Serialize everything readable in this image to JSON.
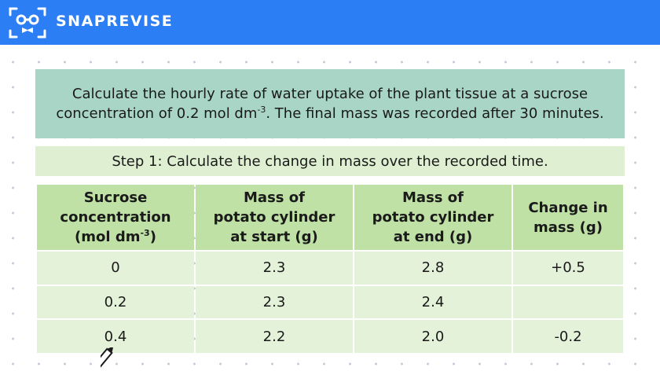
{
  "brand": {
    "name": "SNAPREVISE",
    "logo_icon": "robot-face-icon",
    "color": "#2c7ef4"
  },
  "question": {
    "text_before": "Calculate the hourly rate of water uptake of the plant tissue at a sucrose concentration of 0.2 mol dm",
    "superscript": "-3",
    "text_after": ". The final mass was recorded after 30 minutes."
  },
  "step": {
    "text": "Step 1: Calculate the change in mass over the recorded time."
  },
  "table": {
    "headers": [
      {
        "line1": "Sucrose",
        "line2": "concentration",
        "line3": "(mol dm",
        "sup": "-3",
        "tail": ")"
      },
      {
        "line1": "Mass of",
        "line2": "potato cylinder",
        "line3": "at start (g)"
      },
      {
        "line1": "Mass of",
        "line2": "potato cylinder",
        "line3": "at end (g)"
      },
      {
        "line1": "Change in",
        "line2": "mass (g)"
      }
    ],
    "rows": [
      [
        "0",
        "2.3",
        "2.8",
        "+0.5"
      ],
      [
        "0.2",
        "2.3",
        "2.4",
        ""
      ],
      [
        "0.4",
        "2.2",
        "2.0",
        "-0.2"
      ]
    ]
  },
  "cursor": {
    "icon": "pencil-cursor-icon"
  }
}
